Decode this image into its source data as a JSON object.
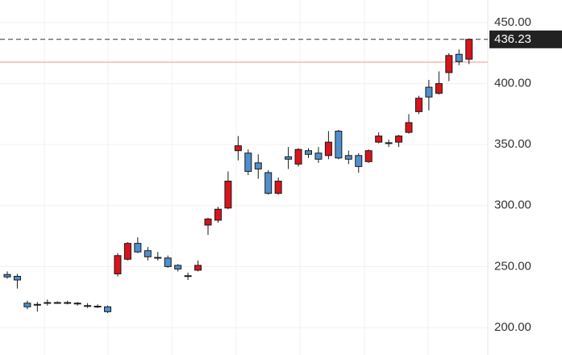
{
  "chart_data": {
    "type": "candlestick",
    "categories": [
      null,
      null,
      null,
      null,
      null,
      null,
      null,
      null,
      null,
      null,
      null,
      null,
      null,
      null,
      null,
      null,
      null,
      null,
      null,
      null,
      null,
      null,
      null,
      null,
      null,
      null,
      null,
      null,
      null,
      null,
      null,
      null,
      null,
      null,
      null,
      null,
      null,
      null,
      null,
      null,
      null,
      null,
      null,
      null,
      null,
      null,
      null
    ],
    "open": [
      243.5,
      242,
      220,
      218.5,
      220.5,
      220.5,
      220.5,
      220,
      218,
      217.5,
      217,
      244,
      256,
      269,
      263,
      257.5,
      257,
      251,
      242.5,
      247,
      284,
      288,
      298,
      345,
      343,
      335,
      327,
      310,
      340,
      334,
      345,
      343,
      341,
      361,
      341,
      341,
      336,
      352,
      351.5,
      352,
      360,
      377,
      397,
      392,
      409,
      424,
      420
    ],
    "high": [
      246,
      244,
      222,
      221,
      223,
      221.5,
      222,
      221,
      220,
      219,
      218,
      261,
      270,
      274,
      266,
      262,
      259,
      252,
      245,
      255,
      290,
      299,
      328,
      357,
      346,
      342,
      329,
      323,
      348,
      347,
      347,
      348,
      361,
      362,
      345,
      343,
      346,
      360,
      354,
      358,
      375,
      390,
      403,
      410,
      425,
      428,
      437
    ],
    "low": [
      240,
      232,
      215,
      213,
      218,
      219.5,
      219,
      218,
      216,
      216,
      212,
      242,
      255,
      261,
      255,
      255,
      249,
      246,
      239,
      246,
      276,
      286,
      297,
      337,
      325,
      322,
      309,
      309,
      330,
      332,
      339,
      335,
      338,
      338,
      334,
      327,
      335,
      351,
      348,
      348,
      359,
      375,
      378,
      391,
      402,
      415,
      416
    ],
    "close": [
      241.5,
      239,
      217,
      219,
      220,
      220.5,
      220,
      219.5,
      218,
      217,
      213,
      259,
      269,
      262,
      258,
      257,
      250,
      248,
      242,
      251,
      289,
      297,
      320,
      349,
      328,
      330,
      310,
      320,
      338,
      346,
      342,
      338,
      352,
      339,
      338,
      332,
      345,
      357,
      351.5,
      357,
      368,
      388,
      389,
      400,
      423,
      418,
      436.23
    ],
    "up_color": "#d8141c",
    "down_color": "#4f8fcc",
    "wick_color": "#1a1a1a",
    "ylim": [
      177.5,
      468.5
    ],
    "yticks": [
      {
        "value": 200,
        "label": "200.00"
      },
      {
        "value": 250,
        "label": "250.00"
      },
      {
        "value": 300,
        "label": "300.00"
      },
      {
        "value": 350,
        "label": "350.00"
      },
      {
        "value": 400,
        "label": "400.00"
      },
      {
        "value": 450,
        "label": "450.00"
      }
    ],
    "grid": true,
    "last_price": {
      "value": 436.23,
      "label": "436.23"
    },
    "reference_line": 417.6
  }
}
